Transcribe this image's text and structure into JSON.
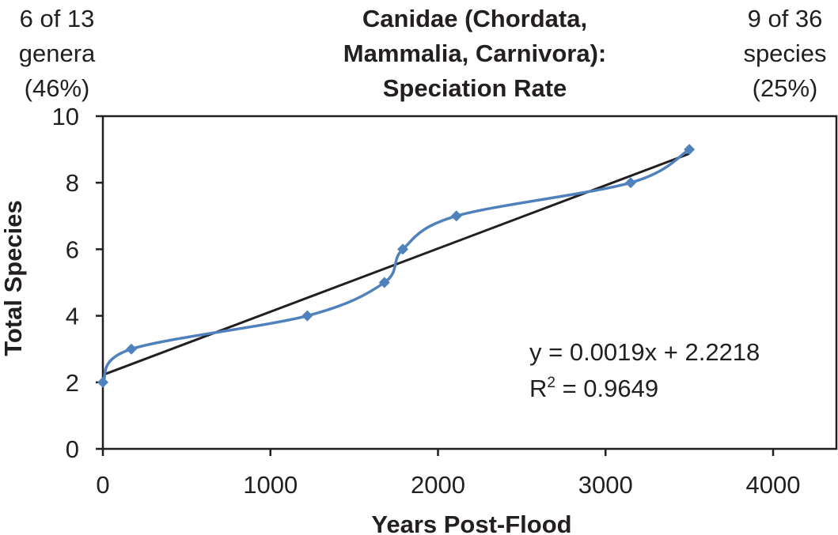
{
  "notes": {
    "left": [
      "6 of 13",
      "genera",
      "(46%)"
    ],
    "right": [
      "9 of 36",
      "species",
      "(25%)"
    ]
  },
  "chart_data": {
    "type": "scatter",
    "title": [
      "Canidae (Chordata,",
      "Mammalia, Carnivora):",
      "Speciation Rate"
    ],
    "xlabel": "Years Post-Flood",
    "ylabel": "Total Species",
    "xlim": [
      0,
      4000
    ],
    "ylim": [
      0,
      10
    ],
    "x_ticks": [
      0,
      1000,
      2000,
      3000,
      4000
    ],
    "y_ticks": [
      0,
      2,
      4,
      6,
      8,
      10
    ],
    "grid": false,
    "series": [
      {
        "marker": "diamond",
        "line": "smooth",
        "color": "#4f81bd",
        "points": [
          {
            "x": 0,
            "y": 2
          },
          {
            "x": 170,
            "y": 3
          },
          {
            "x": 1220,
            "y": 4
          },
          {
            "x": 1680,
            "y": 5
          },
          {
            "x": 1790,
            "y": 6
          },
          {
            "x": 2110,
            "y": 7
          },
          {
            "x": 3150,
            "y": 8
          },
          {
            "x": 3500,
            "y": 9
          }
        ]
      }
    ],
    "trendline": {
      "type": "linear",
      "slope": 0.0019,
      "intercept": 2.2218,
      "color": "#231f20",
      "equation": "y = 0.0019x + 2.2218",
      "r2_label": "R",
      "r2_sup": "2",
      "r2_value": " = 0.9649"
    }
  }
}
